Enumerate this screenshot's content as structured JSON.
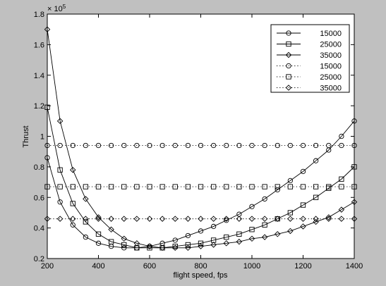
{
  "chart_data": {
    "type": "line",
    "xlabel": "flight speed, fps",
    "ylabel": "Thrust",
    "y_exponent_label": "× 10",
    "y_exponent_power": "5",
    "xlim": [
      200,
      1400
    ],
    "ylim": [
      0.2,
      1.8
    ],
    "y_scale_note": "values in units of 1e5",
    "xticks": [
      "200",
      "400",
      "600",
      "800",
      "1000",
      "1200",
      "1400"
    ],
    "yticks": [
      "0.2",
      "0.4",
      "0.6",
      "0.8",
      "1",
      "1.2",
      "1.4",
      "1.6",
      "1.8"
    ],
    "grid": false,
    "legend_placement": "top-right",
    "x": [
      200,
      250,
      300,
      350,
      400,
      450,
      500,
      550,
      600,
      650,
      700,
      750,
      800,
      850,
      900,
      950,
      1000,
      1050,
      1100,
      1150,
      1200,
      1250,
      1300,
      1350,
      1400
    ],
    "series": [
      {
        "name": "15000",
        "style": "solid",
        "marker": "circle",
        "values": [
          0.86,
          0.57,
          0.42,
          0.34,
          0.3,
          0.28,
          0.27,
          0.27,
          0.28,
          0.3,
          0.32,
          0.35,
          0.38,
          0.41,
          0.45,
          0.49,
          0.54,
          0.59,
          0.65,
          0.71,
          0.77,
          0.84,
          0.91,
          1.0,
          1.1
        ]
      },
      {
        "name": "25000",
        "style": "solid",
        "marker": "square",
        "values": [
          1.19,
          0.78,
          0.56,
          0.44,
          0.36,
          0.31,
          0.29,
          0.27,
          0.27,
          0.27,
          0.28,
          0.29,
          0.3,
          0.32,
          0.34,
          0.36,
          0.39,
          0.42,
          0.46,
          0.5,
          0.55,
          0.6,
          0.66,
          0.72,
          0.8
        ]
      },
      {
        "name": "35000",
        "style": "solid",
        "marker": "diamond",
        "values": [
          1.7,
          1.1,
          0.78,
          0.59,
          0.47,
          0.39,
          0.33,
          0.3,
          0.28,
          0.27,
          0.27,
          0.27,
          0.28,
          0.29,
          0.3,
          0.31,
          0.33,
          0.34,
          0.36,
          0.38,
          0.41,
          0.44,
          0.47,
          0.52,
          0.57
        ]
      },
      {
        "name": "15000",
        "style": "dotted",
        "marker": "circle",
        "values": [
          0.94,
          0.94,
          0.94,
          0.94,
          0.94,
          0.94,
          0.94,
          0.94,
          0.94,
          0.94,
          0.94,
          0.94,
          0.94,
          0.94,
          0.94,
          0.94,
          0.94,
          0.94,
          0.94,
          0.94,
          0.94,
          0.94,
          0.94,
          0.94,
          0.94
        ]
      },
      {
        "name": "25000",
        "style": "dotted",
        "marker": "square",
        "values": [
          0.67,
          0.67,
          0.67,
          0.67,
          0.67,
          0.67,
          0.67,
          0.67,
          0.67,
          0.67,
          0.67,
          0.67,
          0.67,
          0.67,
          0.67,
          0.67,
          0.67,
          0.67,
          0.67,
          0.67,
          0.67,
          0.67,
          0.67,
          0.67,
          0.67
        ]
      },
      {
        "name": "35000",
        "style": "dotted",
        "marker": "diamond",
        "values": [
          0.46,
          0.46,
          0.46,
          0.46,
          0.46,
          0.46,
          0.46,
          0.46,
          0.46,
          0.46,
          0.46,
          0.46,
          0.46,
          0.46,
          0.46,
          0.46,
          0.46,
          0.46,
          0.46,
          0.46,
          0.46,
          0.46,
          0.46,
          0.46,
          0.46
        ]
      }
    ],
    "colors": {
      "background": "#c0c0c0",
      "axes_bg": "#ffffff",
      "line": "#000000"
    }
  }
}
